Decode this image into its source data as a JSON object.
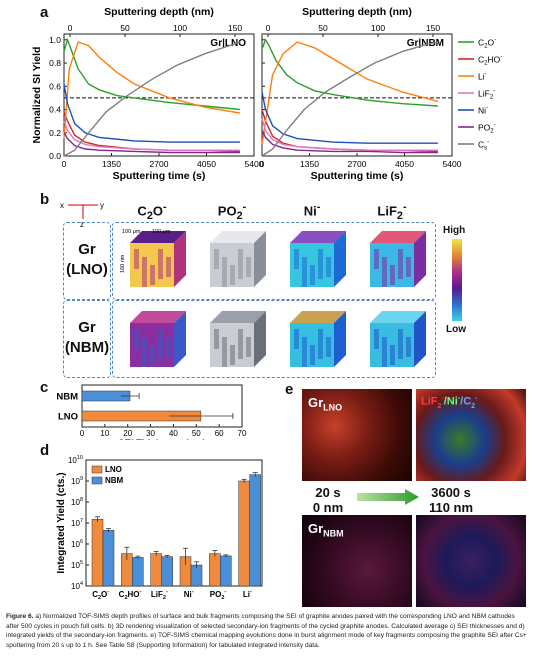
{
  "panels": {
    "a": "a",
    "b": "b",
    "c": "c",
    "d": "d",
    "e": "e"
  },
  "colors": {
    "C2O": "#2ca02c",
    "C2HO": "#d62728",
    "Li": "#ff7f0e",
    "LiF2": "#e377c2",
    "Ni": "#1f4fb4",
    "PO2": "#7b2a8e",
    "Cs": "#7f7f7f",
    "LNO_bar": "#f08a3c",
    "NBM_bar": "#4a8fd8",
    "dash_border": "#4f86c6"
  },
  "chart_data": [
    {
      "type": "line",
      "panel": "a-left",
      "title": "Gr|LNO",
      "xlabel": "Sputtering time (s)",
      "x2label": "Sputtering depth (nm)",
      "ylabel": "Normalized SI Yield",
      "xlim": [
        0,
        5400
      ],
      "ylim": [
        0,
        1.05
      ],
      "xticks": [
        "0",
        "1350",
        "2700",
        "4050",
        "5400"
      ],
      "x2ticks": [
        "0",
        "50",
        "100",
        "150"
      ],
      "yticks": [
        "0.0",
        "0.2",
        "0.4",
        "0.6",
        "0.8",
        "1.0"
      ],
      "reference_line_y": 0.5,
      "series": [
        {
          "name": "C2O-",
          "x": [
            0,
            100,
            200,
            400,
            700,
            1000,
            1500,
            2000,
            3000,
            4000,
            5000
          ],
          "y": [
            0.9,
            1.0,
            0.92,
            0.75,
            0.62,
            0.57,
            0.52,
            0.5,
            0.46,
            0.43,
            0.4
          ]
        },
        {
          "name": "C2HO-",
          "x": [
            0,
            100,
            300,
            600,
            1000,
            2000,
            3000,
            4000,
            5000
          ],
          "y": [
            0.38,
            0.3,
            0.18,
            0.12,
            0.09,
            0.06,
            0.05,
            0.05,
            0.04
          ]
        },
        {
          "name": "Li-",
          "x": [
            0,
            150,
            400,
            700,
            1000,
            1500,
            2000,
            3000,
            4000,
            5000
          ],
          "y": [
            0.15,
            0.75,
            0.98,
            0.95,
            0.85,
            0.72,
            0.62,
            0.5,
            0.42,
            0.37
          ]
        },
        {
          "name": "LiF2-",
          "x": [
            0,
            100,
            300,
            600,
            1000,
            2000,
            3000,
            4000,
            5000
          ],
          "y": [
            0.3,
            0.22,
            0.14,
            0.1,
            0.08,
            0.06,
            0.05,
            0.05,
            0.05
          ]
        },
        {
          "name": "Ni-",
          "x": [
            0,
            100,
            300,
            600,
            1000,
            2000,
            3000,
            4000,
            5000
          ],
          "y": [
            0.62,
            0.45,
            0.28,
            0.2,
            0.16,
            0.13,
            0.12,
            0.12,
            0.12
          ]
        },
        {
          "name": "PO2-",
          "x": [
            0,
            100,
            300,
            600,
            1000,
            2000,
            3000,
            4000,
            5000
          ],
          "y": [
            0.2,
            0.15,
            0.09,
            0.06,
            0.05,
            0.04,
            0.03,
            0.03,
            0.03
          ]
        },
        {
          "name": "Cs-",
          "x": [
            0,
            300,
            700,
            1200,
            1800,
            2500,
            3200,
            4000,
            4800,
            5000
          ],
          "y": [
            0.0,
            0.05,
            0.2,
            0.38,
            0.52,
            0.66,
            0.78,
            0.88,
            0.96,
            0.98
          ]
        }
      ]
    },
    {
      "type": "line",
      "panel": "a-right",
      "title": "Gr|NBM",
      "xlabel": "Sputtering time (s)",
      "x2label": "Sputtering depth (nm)",
      "xlim": [
        0,
        5400
      ],
      "ylim": [
        0,
        1.05
      ],
      "xticks": [
        "0",
        "1350",
        "2700",
        "4050",
        "5400"
      ],
      "x2ticks": [
        "0",
        "50",
        "100",
        "150"
      ],
      "reference_line_y": 0.5,
      "series": [
        {
          "name": "C2O-",
          "x": [
            0,
            100,
            200,
            400,
            700,
            1000,
            1500,
            2000,
            3000,
            4000,
            5000
          ],
          "y": [
            0.92,
            1.0,
            0.95,
            0.82,
            0.7,
            0.63,
            0.56,
            0.53,
            0.48,
            0.45,
            0.43
          ]
        },
        {
          "name": "C2HO-",
          "x": [
            0,
            100,
            300,
            600,
            1000,
            2000,
            3000,
            4000,
            5000
          ],
          "y": [
            0.4,
            0.3,
            0.17,
            0.11,
            0.08,
            0.06,
            0.05,
            0.05,
            0.04
          ]
        },
        {
          "name": "Li-",
          "x": [
            0,
            300,
            600,
            1000,
            1500,
            2000,
            2500,
            3000,
            4000,
            5000
          ],
          "y": [
            0.1,
            0.7,
            0.88,
            0.98,
            0.93,
            0.84,
            0.75,
            0.66,
            0.55,
            0.47
          ]
        },
        {
          "name": "LiF2-",
          "x": [
            0,
            100,
            300,
            600,
            1000,
            2000,
            3000,
            4000,
            5000
          ],
          "y": [
            0.32,
            0.22,
            0.14,
            0.1,
            0.08,
            0.06,
            0.05,
            0.05,
            0.05
          ]
        },
        {
          "name": "Ni-",
          "x": [
            0,
            100,
            300,
            600,
            1000,
            2000,
            3000,
            4000,
            5000
          ],
          "y": [
            0.55,
            0.4,
            0.26,
            0.19,
            0.15,
            0.12,
            0.11,
            0.11,
            0.11
          ]
        },
        {
          "name": "PO2-",
          "x": [
            0,
            100,
            300,
            600,
            1000,
            2000,
            3000,
            4000,
            5000
          ],
          "y": [
            0.22,
            0.16,
            0.1,
            0.07,
            0.05,
            0.04,
            0.04,
            0.03,
            0.03
          ]
        },
        {
          "name": "Cs-",
          "x": [
            0,
            300,
            700,
            1200,
            1800,
            2500,
            3200,
            4000,
            4800,
            5000
          ],
          "y": [
            0.0,
            0.06,
            0.22,
            0.4,
            0.55,
            0.68,
            0.8,
            0.9,
            0.97,
            0.98
          ]
        }
      ]
    },
    {
      "type": "bar",
      "panel": "c",
      "orientation": "horizontal",
      "categories": [
        "NBM",
        "LNO"
      ],
      "values": [
        21,
        52
      ],
      "errors": [
        4,
        14
      ],
      "xlabel": "SEI Thickness (nm)",
      "xlim": [
        0,
        70
      ],
      "xticks": [
        "0",
        "10",
        "20",
        "30",
        "40",
        "50",
        "60",
        "70"
      ],
      "bar_colors": [
        "#4a8fd8",
        "#f08a3c"
      ]
    },
    {
      "type": "bar",
      "panel": "d",
      "categories": [
        "C2O-",
        "C2HO-",
        "LiF2-",
        "Ni-",
        "PO2-",
        "Li-"
      ],
      "ylabel": "Integrated Yield (cts.)",
      "yscale": "log",
      "ylim": [
        10000,
        10000000000
      ],
      "yticks": [
        "10^4",
        "10^5",
        "10^6",
        "10^7",
        "10^8",
        "10^9",
        "10^10"
      ],
      "legend": "top-left",
      "series": [
        {
          "name": "LNO",
          "values": [
            15000000,
            350000,
            350000,
            250000,
            350000,
            1000000000
          ],
          "errors_log": [
            0.12,
            0.3,
            0.1,
            0.4,
            0.15,
            0.08
          ]
        },
        {
          "name": "NBM",
          "values": [
            4500000,
            230000,
            250000,
            100000,
            270000,
            2000000000
          ],
          "errors_log": [
            0.08,
            0.06,
            0.06,
            0.15,
            0.05,
            0.1
          ]
        }
      ]
    }
  ],
  "a": {
    "legend": [
      {
        "key": "C2O",
        "base": "C",
        "sub": "2",
        "rest": "O",
        "sup": "-"
      },
      {
        "key": "C2HO",
        "base": "C",
        "sub": "2",
        "rest": "HO",
        "sup": "-"
      },
      {
        "key": "Li",
        "base": "Li",
        "sub": "",
        "rest": "",
        "sup": "-"
      },
      {
        "key": "LiF2",
        "base": "LiF",
        "sub": "2",
        "rest": "",
        "sup": "-"
      },
      {
        "key": "Ni",
        "base": "Ni",
        "sub": "",
        "rest": "",
        "sup": "-"
      },
      {
        "key": "PO2",
        "base": "PO",
        "sub": "2",
        "rest": "",
        "sup": "-"
      },
      {
        "key": "Cs",
        "base": "C",
        "sub": "s",
        "rest": "",
        "sup": "-"
      }
    ]
  },
  "b": {
    "axes": {
      "x": "x",
      "y": "y",
      "z": "z"
    },
    "columns": [
      {
        "base": "C",
        "sub": "2",
        "rest": "O",
        "sup": "-"
      },
      {
        "base": "PO",
        "sub": "2",
        "rest": "",
        "sup": "-"
      },
      {
        "base": "Ni",
        "sub": "",
        "rest": "",
        "sup": "-"
      },
      {
        "base": "LiF",
        "sub": "2",
        "rest": "",
        "sup": "-"
      }
    ],
    "rows": [
      {
        "line1": "Gr",
        "line2": "(LNO)"
      },
      {
        "line1": "Gr",
        "line2": "(NBM)"
      }
    ],
    "dims": {
      "w": "100 μm",
      "d": "100 μm",
      "h": "160 nm"
    },
    "colorbar": {
      "high": "High",
      "low": "Low"
    }
  },
  "e": {
    "tile_gr_lno": {
      "base": "Gr",
      "sub": "LNO"
    },
    "tile_overlay": {
      "p1": "LiF",
      "p1sub": "2",
      "p1sup": "-",
      "p2": "/Ni",
      "p2sup": "-",
      "p3": "/C",
      "p3sub": "2",
      "p3sup": "-"
    },
    "tile_gr_nbm": {
      "base": "Gr",
      "sub": "NBM"
    },
    "time_start": "20 s",
    "depth_start": "0 nm",
    "time_end": "3600 s",
    "depth_end": "110 nm"
  },
  "caption": {
    "label": "Figure 6.",
    "text": " a) Normalized TOF-SIMS depth profiles of surface and bulk fragments composing the SEI of graphite anodes paired with the corresponding LNO and NBM cathodes after 500 cycles in pouch full cells. b) 3D rendering visualization of selected secondary-ion fragments of the cycled graphite anodes. Calculated average c) SEI thicknesses and d) integrated yields of the secondary-ion fragments. e) TOF-SIMS chemical mapping evolutions done in burst alignment mode of key fragments composing the graphite SEI after Cs+ sputtering from 20 s up to 1 h. See Table S8 (Supporting Information) for tabulated integrated intensity data."
  }
}
